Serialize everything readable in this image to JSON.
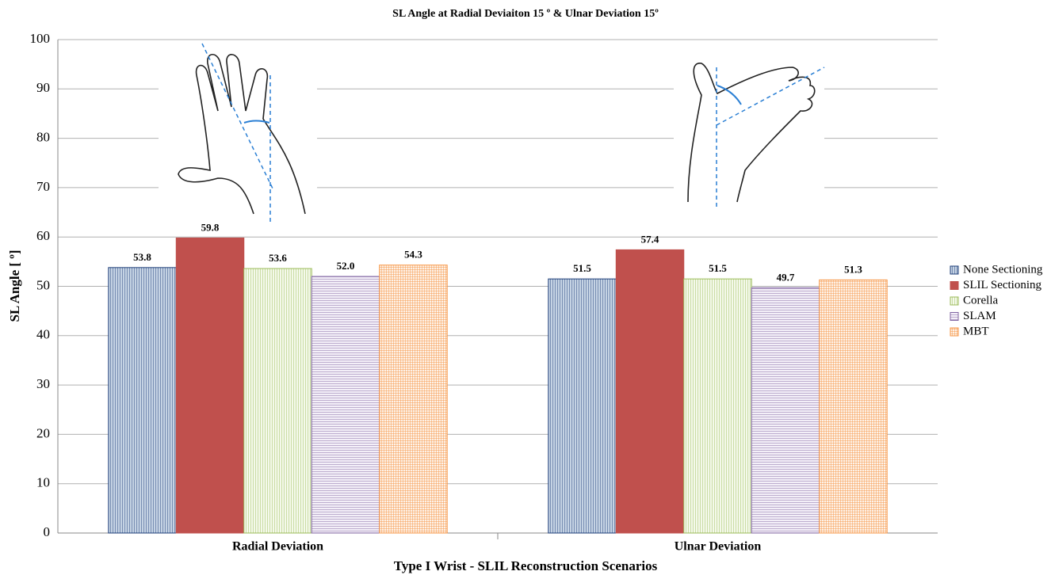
{
  "chart_data": {
    "type": "bar",
    "title": "SL Angle at Radial Deviaiton 15 º & Ulnar Deviation  15º",
    "x_label": "Type I Wrist - SLIL Reconstruction Scenarios",
    "y_label": "SL Angle [ º]",
    "categories": [
      "Radial Deviation",
      "Ulnar Deviation"
    ],
    "series": [
      {
        "name": "None Sectioning",
        "color": "#1f3f7a",
        "values": [
          53.8,
          51.5
        ],
        "value_labels": [
          "53.8",
          "51.5"
        ]
      },
      {
        "name": "SLIL Sectioning",
        "color": "#c0504d",
        "values": [
          59.8,
          57.4
        ],
        "value_labels": [
          "59.8",
          "57.4"
        ]
      },
      {
        "name": "Corella",
        "color": "#9bbb59",
        "values": [
          53.6,
          51.5
        ],
        "value_labels": [
          "53.6",
          "51.5"
        ]
      },
      {
        "name": "SLAM",
        "color": "#8064a2",
        "values": [
          52.0,
          49.7
        ],
        "value_labels": [
          "52.0",
          "49.7"
        ]
      },
      {
        "name": "MBT",
        "color": "#f79646",
        "values": [
          54.3,
          51.3
        ],
        "value_labels": [
          "54.3",
          "51.3"
        ]
      }
    ],
    "ylim": [
      0,
      100
    ],
    "yticks": [
      0,
      10,
      20,
      30,
      40,
      50,
      60,
      70,
      80,
      90,
      100
    ],
    "grid": true,
    "legend": "right"
  }
}
